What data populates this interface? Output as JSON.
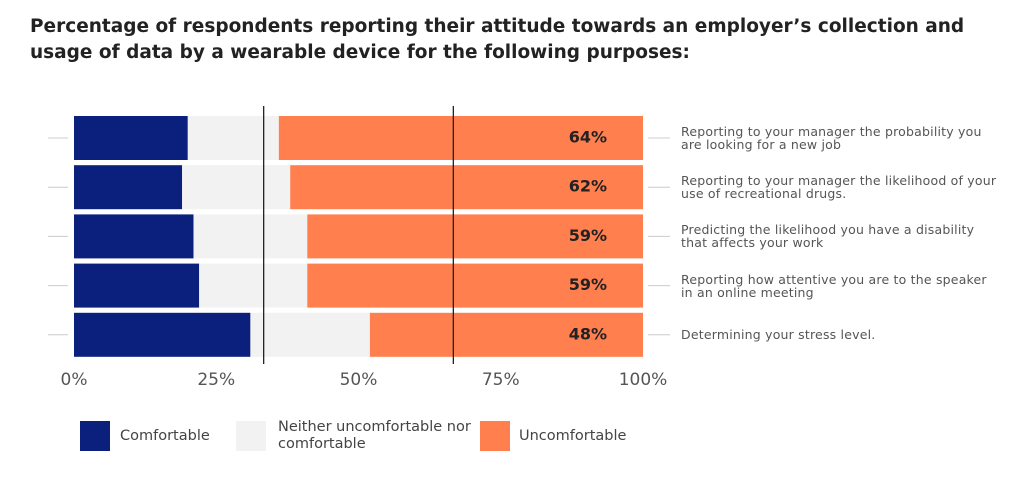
{
  "chart_data": {
    "type": "stacked_bar_horizontal",
    "title": "Percentage of respondents reporting their attitude towards an employer’s collection and usage of data by a wearable device for the following purposes:",
    "categories": [
      "Reporting to your manager the probability you are looking for a new job",
      "Reporting to your manager the likelihood of your use of recreational drugs.",
      "Predicting the likelihood you have a disability that affects your work",
      "Reporting how attentive you are to the speaker in an online meeting",
      "Determining your stress level."
    ],
    "series": [
      {
        "name": "Comfortable",
        "color": "#0b1f7c",
        "values": [
          20,
          19,
          21,
          22,
          31
        ]
      },
      {
        "name": "Neither uncomfortable nor comfortable",
        "color": "#f2f2f2",
        "values": [
          16,
          19,
          20,
          19,
          21
        ]
      },
      {
        "name": "Uncomfortable",
        "color": "#ff7f4e",
        "values": [
          64,
          62,
          59,
          59,
          48
        ],
        "value_labels": [
          "64%",
          "62%",
          "59%",
          "59%",
          "48%"
        ]
      }
    ],
    "xlim": [
      0,
      100
    ],
    "xticks": [
      {
        "value": 0,
        "label": "0%"
      },
      {
        "value": 25,
        "label": "25%"
      },
      {
        "value": 50,
        "label": "50%"
      },
      {
        "value": 75,
        "label": "75%"
      },
      {
        "value": 100,
        "label": "100%"
      }
    ],
    "legend": "bottom"
  }
}
